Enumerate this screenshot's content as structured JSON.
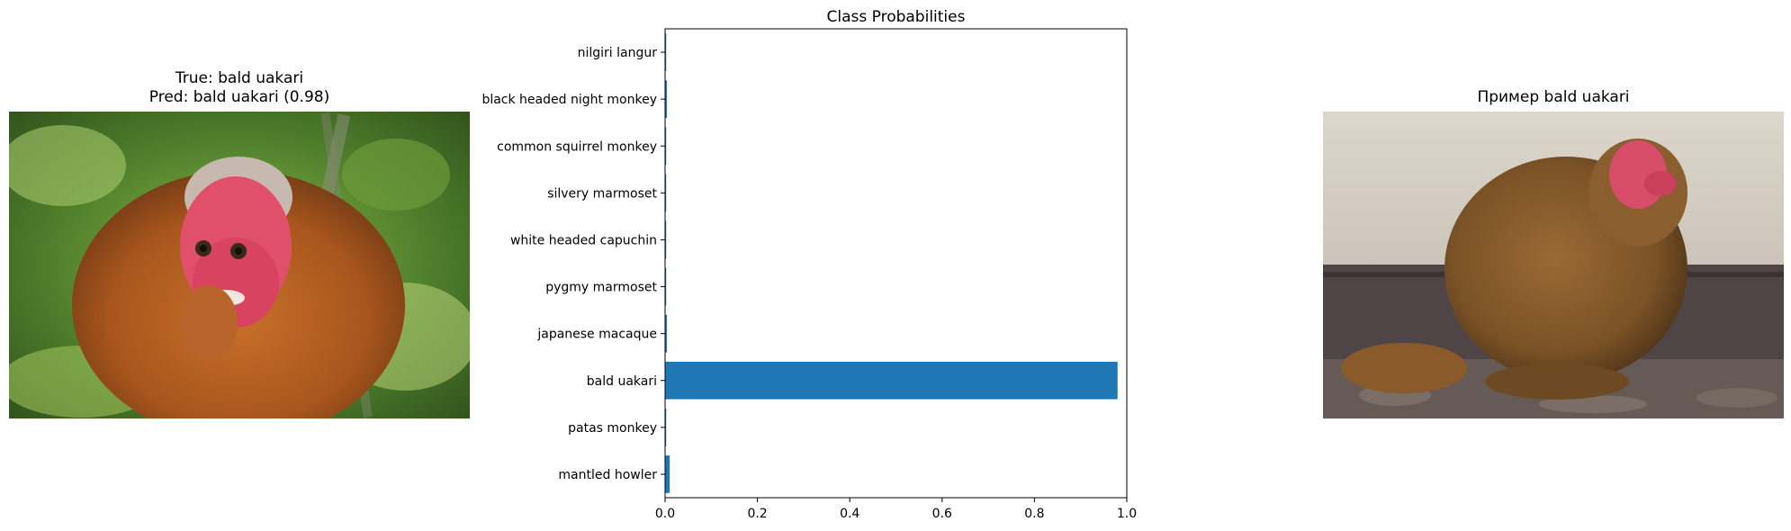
{
  "left_panel": {
    "title_true": "True: bald uakari",
    "title_pred": "Pred: bald uakari (0.98)",
    "image_subject": "bald uakari photo"
  },
  "right_panel": {
    "title": "Пример bald uakari",
    "image_subject": "bald uakari example photo"
  },
  "colors": {
    "bar": "#1f77b4",
    "axes": "#000000"
  },
  "chart_data": {
    "type": "bar",
    "orientation": "horizontal",
    "title": "Class Probabilities",
    "xlabel": "",
    "ylabel": "",
    "xlim": [
      0,
      1.0
    ],
    "xticks": [
      "0.0",
      "0.2",
      "0.4",
      "0.6",
      "0.8",
      "1.0"
    ],
    "grid": false,
    "categories": [
      "nilgiri langur",
      "black headed night monkey",
      "common squirrel monkey",
      "silvery marmoset",
      "white headed capuchin",
      "pygmy marmoset",
      "japanese macaque",
      "bald uakari",
      "patas monkey",
      "mantled howler"
    ],
    "values": [
      0.001,
      0.004,
      0.001,
      0.001,
      0.001,
      0.001,
      0.004,
      0.98,
      0.001,
      0.01
    ]
  }
}
